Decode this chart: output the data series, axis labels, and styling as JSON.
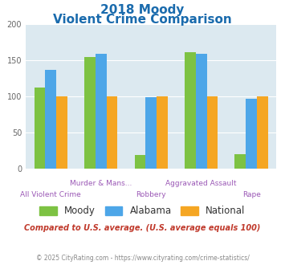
{
  "title_line1": "2018 Moody",
  "title_line2": "Violent Crime Comparison",
  "categories": [
    "All Violent Crime",
    "Murder & Mans...",
    "Robbery",
    "Aggravated Assault",
    "Rape"
  ],
  "series": {
    "Moody": [
      112,
      154,
      18,
      161,
      19
    ],
    "Alabama": [
      136,
      158,
      98,
      158,
      96
    ],
    "National": [
      100,
      100,
      100,
      100,
      100
    ]
  },
  "colors": {
    "Moody": "#7dc243",
    "Alabama": "#4da6e8",
    "National": "#f5a623"
  },
  "ylim": [
    0,
    200
  ],
  "yticks": [
    0,
    50,
    100,
    150,
    200
  ],
  "plot_bg": "#dce9f0",
  "title_color": "#1a6bad",
  "subtitle_note": "Compared to U.S. average. (U.S. average equals 100)",
  "footer": "© 2025 CityRating.com - https://www.cityrating.com/crime-statistics/",
  "subtitle_color": "#c0392b",
  "footer_color": "#888888",
  "cat_label_color": "#9b59b6",
  "bar_width": 0.22
}
